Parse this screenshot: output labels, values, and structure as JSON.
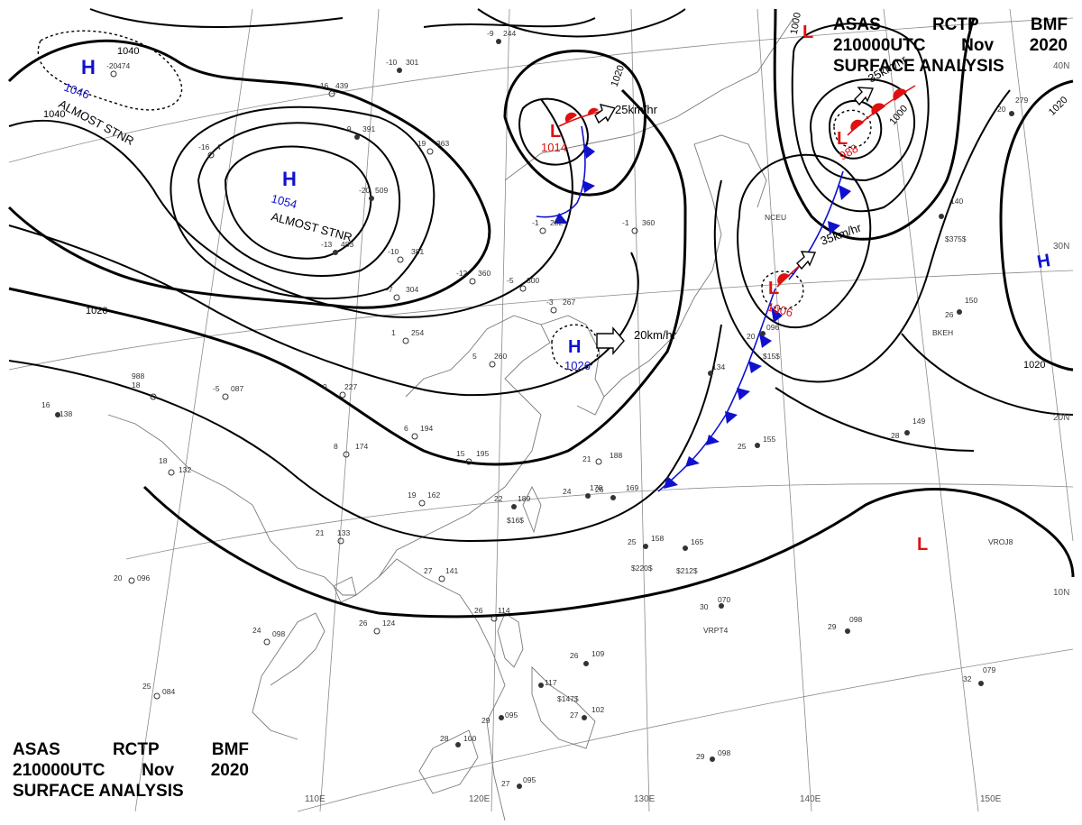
{
  "header": {
    "line1": [
      "ASAS",
      "RCTP",
      "BMF"
    ],
    "line2": [
      "210000UTC",
      "Nov",
      "2020"
    ],
    "line3": "SURFACE ANALYSIS"
  },
  "colors": {
    "isobar": "#000000",
    "high": "#1010d0",
    "low": "#e01010",
    "cold_front": "#1010d0",
    "warm_front": "#e01010",
    "coast": "#7a7a7a",
    "grid": "#8a8a8a"
  },
  "isobar_labels": [
    {
      "text": "1040"
    },
    {
      "text": "1040"
    },
    {
      "text": "1020"
    },
    {
      "text": "1020"
    },
    {
      "text": "1000"
    },
    {
      "text": "1000"
    },
    {
      "text": "1020"
    },
    {
      "text": "1020"
    }
  ],
  "pressure_centers": [
    {
      "type": "H",
      "value": "1046",
      "note": "ALMOST STNR"
    },
    {
      "type": "H",
      "value": "1054",
      "note": "ALMOST STNR"
    },
    {
      "type": "H",
      "value": "1026",
      "note": ""
    },
    {
      "type": "L",
      "value": "1014",
      "note": ""
    },
    {
      "type": "L",
      "value": "1006",
      "note": ""
    },
    {
      "type": "L",
      "value": "988",
      "note": ""
    },
    {
      "type": "L",
      "value": "",
      "note": ""
    },
    {
      "type": "L",
      "value": "",
      "note": ""
    },
    {
      "type": "H",
      "value": "",
      "note": ""
    }
  ],
  "motion_labels": [
    "25km/hr",
    "20km/hr",
    "35km/hr",
    "35km/hr"
  ],
  "lon_labels": [
    "110E",
    "120E",
    "130E",
    "140E",
    "150E"
  ],
  "lat_labels": [
    "40N",
    "30N",
    "20N",
    "10N"
  ],
  "stations": [
    {
      "t": "-20",
      "p": "474"
    },
    {
      "t": "-10",
      "p": "301"
    },
    {
      "t": "-9",
      "p": "244"
    },
    {
      "t": "-16",
      "p": "439"
    },
    {
      "t": "-9",
      "p": "391"
    },
    {
      "t": "-19",
      "p": "363"
    },
    {
      "t": "-16",
      "p": "4"
    },
    {
      "t": "-20",
      "p": "509"
    },
    {
      "t": "-13",
      "p": "483"
    },
    {
      "t": "-10",
      "p": "381"
    },
    {
      "t": "-12",
      "p": "360"
    },
    {
      "t": "-5",
      "p": "300"
    },
    {
      "t": "-7",
      "p": "304"
    },
    {
      "t": "-1",
      "p": "282"
    },
    {
      "t": "-1",
      "p": "360"
    },
    {
      "t": "-3",
      "p": "267"
    },
    {
      "t": "1",
      "p": "254"
    },
    {
      "t": "5",
      "p": "260"
    },
    {
      "t": "-5",
      "p": "087"
    },
    {
      "t": "9",
      "p": "227"
    },
    {
      "t": "8",
      "p": "174"
    },
    {
      "t": "6",
      "p": "194"
    },
    {
      "t": "15",
      "p": "195"
    },
    {
      "t": "18",
      "p": "132"
    },
    {
      "t": "19",
      "p": "162"
    },
    {
      "t": "22",
      "p": "189"
    },
    {
      "t": "21",
      "p": "133"
    },
    {
      "t": "20",
      "p": "096"
    },
    {
      "t": "24",
      "p": "098"
    },
    {
      "t": "25",
      "p": "084"
    },
    {
      "t": "26",
      "p": "124"
    },
    {
      "t": "27",
      "p": "141"
    },
    {
      "t": "26",
      "p": "114"
    },
    {
      "t": "21",
      "p": "188"
    },
    {
      "t": "24",
      "p": "178"
    },
    {
      "t": "26",
      "p": "169"
    },
    {
      "t": "25",
      "p": "158"
    },
    {
      "t": "165",
      "p": ""
    },
    {
      "t": "134",
      "p": ""
    },
    {
      "t": "25",
      "p": "155"
    },
    {
      "t": "28",
      "p": "149"
    },
    {
      "t": "26",
      "p": "150"
    },
    {
      "t": "20",
      "p": "096"
    },
    {
      "t": "30",
      "p": "070"
    },
    {
      "t": "29",
      "p": "098"
    },
    {
      "t": "32",
      "p": "079"
    },
    {
      "t": "29",
      "p": "098"
    },
    {
      "t": "27",
      "p": "102"
    },
    {
      "t": "28",
      "p": "100"
    },
    {
      "t": "29",
      "p": "095"
    },
    {
      "t": "27",
      "p": "095"
    },
    {
      "t": "26",
      "p": "109"
    },
    {
      "t": "117",
      "p": ""
    },
    {
      "t": "20",
      "p": "279"
    },
    {
      "t": "140",
      "p": ""
    },
    {
      "t": "18",
      "p": "988"
    },
    {
      "t": "16",
      "p": "138"
    }
  ],
  "station_ids": [
    "$220$",
    "$212$",
    "$147$",
    "$375$",
    "VROJ8",
    "VRPT4",
    "BKEH",
    "$15$",
    "$16$",
    "NCEU"
  ]
}
